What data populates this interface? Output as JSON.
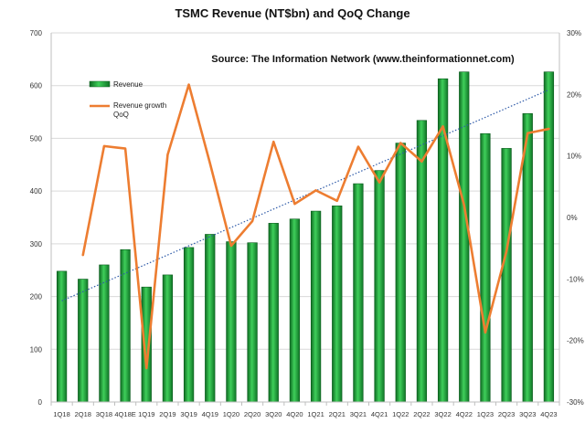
{
  "chart_data": {
    "type": "bar",
    "title": "TSMC Revenue (NT$bn) and QoQ Change",
    "source": "Source: The Information Network (www.theinformationnet.com)",
    "categories": [
      "1Q18",
      "2Q18",
      "3Q18",
      "4Q18E",
      "1Q19",
      "2Q19",
      "3Q19",
      "4Q19",
      "1Q20",
      "2Q20",
      "3Q20",
      "4Q20",
      "1Q21",
      "2Q21",
      "3Q21",
      "4Q21",
      "1Q22",
      "2Q22",
      "3Q22",
      "4Q22",
      "1Q23",
      "2Q23",
      "3Q23",
      "4Q23"
    ],
    "series": [
      {
        "name": "Revenue",
        "type": "bar",
        "axis": "left",
        "color": "#22a83a",
        "values": [
          248,
          233,
          260,
          289,
          218,
          241,
          293,
          318,
          304,
          302,
          339,
          347,
          362,
          372,
          414,
          439,
          491,
          534,
          613,
          626,
          509,
          481,
          547,
          626
        ]
      },
      {
        "name": "Revenue growth QoQ",
        "type": "line",
        "axis": "right",
        "color": "#ed7d31",
        "values": [
          null,
          -6.1,
          11.6,
          11.2,
          -24.5,
          10.2,
          21.6,
          8.8,
          -4.6,
          -0.6,
          12.3,
          2.2,
          4.4,
          2.7,
          11.5,
          5.7,
          12.1,
          9.1,
          14.8,
          2.0,
          -18.7,
          -5.5,
          13.7,
          14.4
        ]
      }
    ],
    "trendline": {
      "of": "Revenue",
      "type": "linear",
      "color": "#2e5aa8",
      "style": "dotted"
    },
    "y_left": {
      "min": 0,
      "max": 700,
      "step": 100,
      "ticks": [
        "0",
        "100",
        "200",
        "300",
        "400",
        "500",
        "600",
        "700"
      ]
    },
    "y_right": {
      "min": -30,
      "max": 30,
      "step": 10,
      "ticks": [
        "-30%",
        "-20%",
        "-10%",
        "0%",
        "10%",
        "20%",
        "30%"
      ]
    },
    "legend": {
      "position": "top-left",
      "items": [
        {
          "label": "Revenue",
          "kind": "bar"
        },
        {
          "label_lines": [
            "Revenue growth",
            "QoQ"
          ],
          "kind": "line"
        }
      ]
    },
    "gridlines": true
  }
}
